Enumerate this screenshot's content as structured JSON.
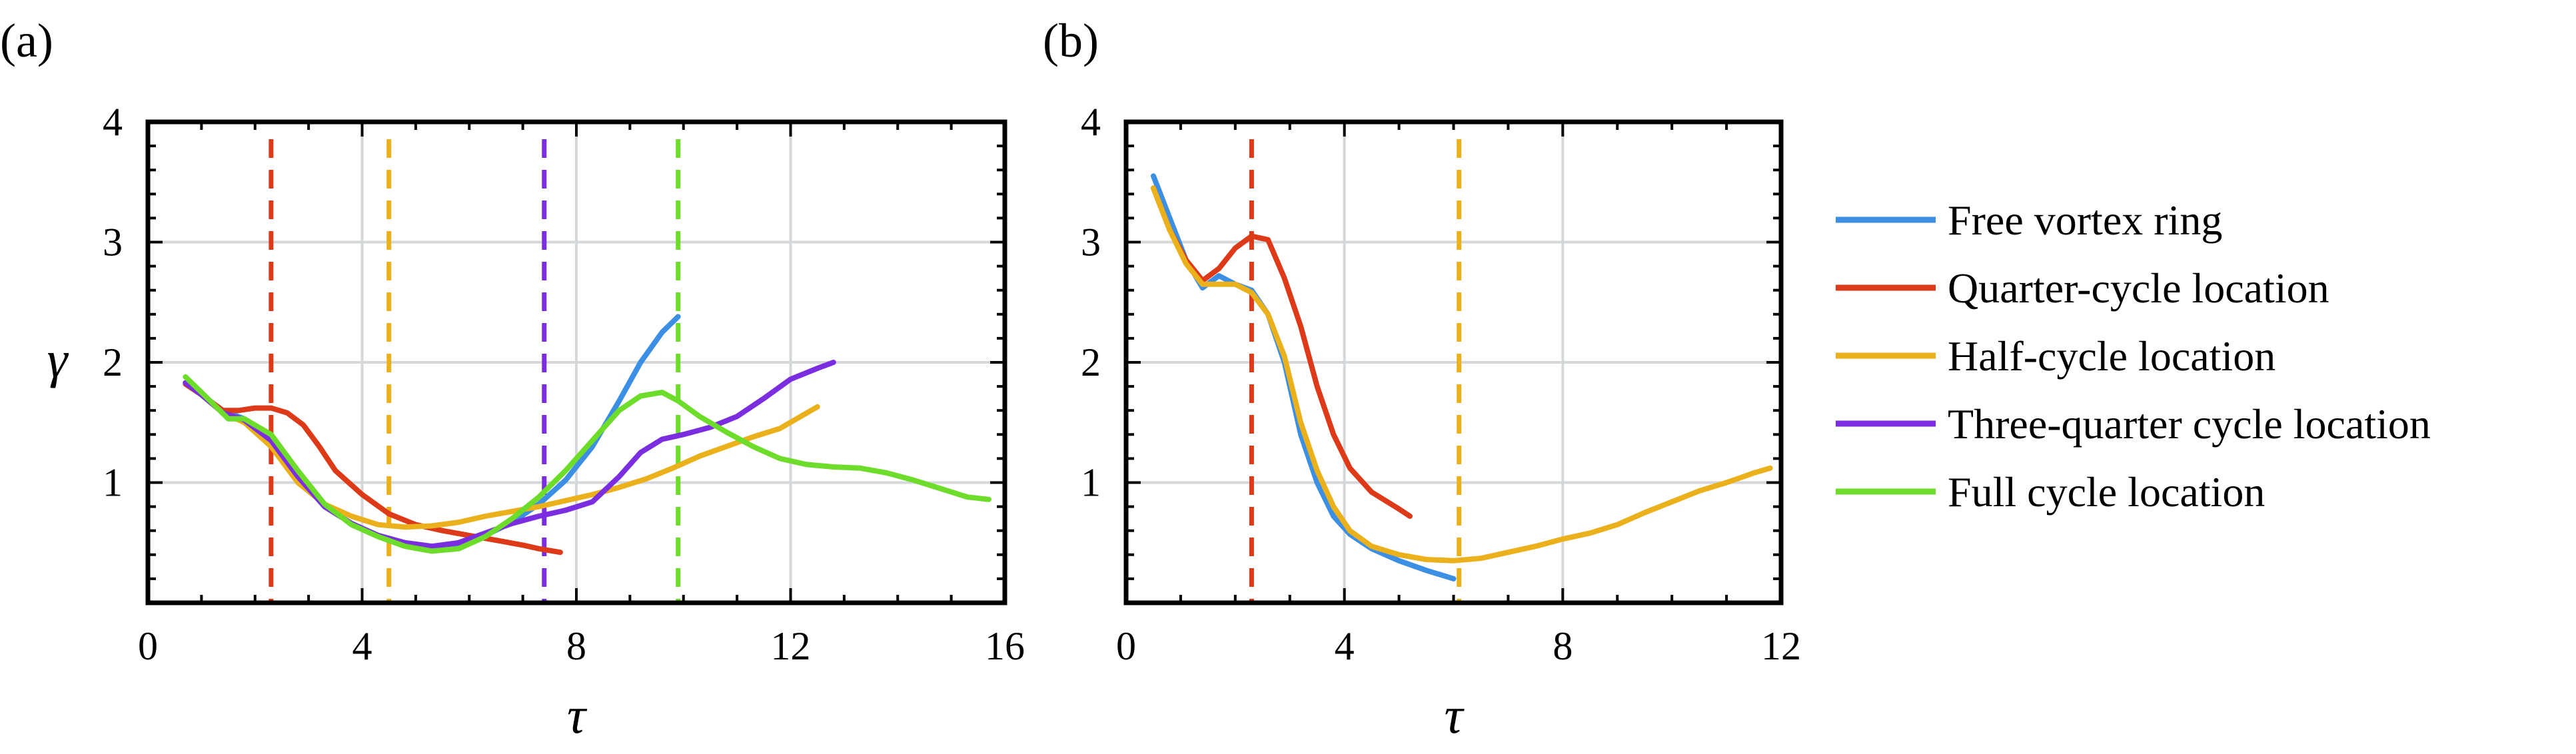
{
  "colors": {
    "free_vortex_ring": "#3d8fe3",
    "quarter_cycle": "#dd3a1a",
    "half_cycle": "#ebb11d",
    "three_quarter_cycle": "#7b2ee0",
    "full_cycle": "#6ddc2a"
  },
  "legend": [
    {
      "label": "Free vortex ring",
      "color_key": "free_vortex_ring"
    },
    {
      "label": "Quarter-cycle location",
      "color_key": "quarter_cycle"
    },
    {
      "label": "Half-cycle location",
      "color_key": "half_cycle"
    },
    {
      "label": "Three-quarter cycle location",
      "color_key": "three_quarter_cycle"
    },
    {
      "label": "Full cycle location",
      "color_key": "full_cycle"
    }
  ],
  "chart_data": [
    {
      "type": "line",
      "panel_label": "(a)",
      "xlabel": "τ",
      "ylabel": "γ",
      "xlim": [
        0,
        16
      ],
      "ylim": [
        0,
        4
      ],
      "xticks": [
        0,
        4,
        8,
        12,
        16
      ],
      "yticks": [
        1,
        2,
        3,
        4
      ],
      "ytick_labels": [
        "1",
        "2",
        "3",
        "4"
      ],
      "xtick_labels": [
        "0",
        "4",
        "8",
        "12",
        "16"
      ],
      "y_zero_label": "0",
      "grid": true,
      "vertical_markers": [
        {
          "x": 2.3,
          "color_key": "quarter_cycle"
        },
        {
          "x": 4.5,
          "color_key": "half_cycle"
        },
        {
          "x": 7.4,
          "color_key": "three_quarter_cycle"
        },
        {
          "x": 9.9,
          "color_key": "full_cycle"
        }
      ],
      "series": [
        {
          "name": "Free vortex ring",
          "color_key": "free_vortex_ring",
          "x": [
            0.7,
            1.0,
            1.4,
            1.8,
            2.3,
            2.8,
            3.3,
            3.8,
            4.3,
            4.8,
            5.3,
            5.8,
            6.3,
            6.8,
            7.3,
            7.8,
            8.3,
            8.8,
            9.2,
            9.6,
            9.9
          ],
          "y": [
            1.83,
            1.73,
            1.6,
            1.53,
            1.35,
            1.05,
            0.8,
            0.66,
            0.56,
            0.5,
            0.47,
            0.48,
            0.56,
            0.67,
            0.82,
            1.02,
            1.3,
            1.68,
            2.0,
            2.25,
            2.38
          ]
        },
        {
          "name": "Quarter-cycle location",
          "color_key": "quarter_cycle",
          "x": [
            0.7,
            1.0,
            1.4,
            1.7,
            2.0,
            2.3,
            2.6,
            2.9,
            3.2,
            3.5,
            4.0,
            4.5,
            5.0,
            5.5,
            6.0,
            6.5,
            7.0,
            7.3,
            7.7
          ],
          "y": [
            1.82,
            1.73,
            1.6,
            1.6,
            1.62,
            1.62,
            1.58,
            1.48,
            1.3,
            1.1,
            0.9,
            0.74,
            0.65,
            0.6,
            0.56,
            0.52,
            0.48,
            0.45,
            0.42
          ]
        },
        {
          "name": "Half-cycle location",
          "color_key": "half_cycle",
          "x": [
            0.7,
            1.0,
            1.4,
            1.8,
            2.3,
            2.8,
            3.3,
            3.8,
            4.3,
            4.8,
            5.3,
            5.8,
            6.3,
            6.8,
            7.3,
            7.8,
            8.3,
            8.8,
            9.3,
            9.8,
            10.3,
            10.8,
            11.3,
            11.8,
            12.5
          ],
          "y": [
            1.83,
            1.73,
            1.58,
            1.5,
            1.3,
            1.0,
            0.82,
            0.72,
            0.65,
            0.63,
            0.64,
            0.67,
            0.72,
            0.76,
            0.8,
            0.85,
            0.9,
            0.96,
            1.03,
            1.12,
            1.22,
            1.3,
            1.38,
            1.45,
            1.63
          ]
        },
        {
          "name": "Three-quarter cycle location",
          "color_key": "three_quarter_cycle",
          "x": [
            0.7,
            1.0,
            1.4,
            1.8,
            2.3,
            2.8,
            3.3,
            3.8,
            4.3,
            4.8,
            5.3,
            5.8,
            6.3,
            6.8,
            7.3,
            7.8,
            8.3,
            8.8,
            9.2,
            9.6,
            10.0,
            10.5,
            11.0,
            11.5,
            12.0,
            12.5,
            12.8
          ],
          "y": [
            1.83,
            1.73,
            1.58,
            1.52,
            1.35,
            1.05,
            0.8,
            0.66,
            0.56,
            0.5,
            0.47,
            0.5,
            0.58,
            0.66,
            0.72,
            0.77,
            0.84,
            1.05,
            1.25,
            1.36,
            1.4,
            1.46,
            1.55,
            1.7,
            1.86,
            1.95,
            2.0
          ]
        },
        {
          "name": "Full cycle location",
          "color_key": "full_cycle",
          "x": [
            0.7,
            1.0,
            1.5,
            1.8,
            2.3,
            2.8,
            3.3,
            3.8,
            4.3,
            4.8,
            5.3,
            5.8,
            6.3,
            6.8,
            7.3,
            7.8,
            8.3,
            8.8,
            9.2,
            9.6,
            9.9,
            10.3,
            10.8,
            11.3,
            11.8,
            12.3,
            12.8,
            13.3,
            13.8,
            14.3,
            14.8,
            15.3,
            15.7
          ],
          "y": [
            1.88,
            1.75,
            1.53,
            1.53,
            1.4,
            1.1,
            0.82,
            0.65,
            0.55,
            0.47,
            0.43,
            0.45,
            0.55,
            0.7,
            0.88,
            1.1,
            1.35,
            1.6,
            1.72,
            1.75,
            1.68,
            1.55,
            1.42,
            1.3,
            1.2,
            1.15,
            1.13,
            1.12,
            1.08,
            1.02,
            0.95,
            0.88,
            0.86
          ]
        }
      ]
    },
    {
      "type": "line",
      "panel_label": "(b)",
      "xlabel": "τ",
      "ylabel": "",
      "xlim": [
        0,
        12
      ],
      "ylim": [
        0,
        4
      ],
      "xticks": [
        0,
        4,
        8,
        12
      ],
      "yticks": [
        1,
        2,
        3,
        4
      ],
      "ytick_labels": [
        "1",
        "2",
        "3",
        "4"
      ],
      "xtick_labels": [
        "0",
        "4",
        "8",
        "12"
      ],
      "y_zero_label": "0",
      "grid": true,
      "vertical_markers": [
        {
          "x": 2.3,
          "color_key": "quarter_cycle"
        },
        {
          "x": 6.1,
          "color_key": "half_cycle"
        }
      ],
      "series": [
        {
          "name": "Free vortex ring",
          "color_key": "free_vortex_ring",
          "x": [
            0.5,
            0.8,
            1.1,
            1.4,
            1.7,
            2.0,
            2.3,
            2.6,
            2.9,
            3.2,
            3.5,
            3.8,
            4.1,
            4.5,
            5.0,
            5.5,
            6.0
          ],
          "y": [
            3.55,
            3.2,
            2.85,
            2.62,
            2.72,
            2.65,
            2.6,
            2.4,
            2.0,
            1.4,
            1.0,
            0.72,
            0.57,
            0.45,
            0.35,
            0.27,
            0.2
          ]
        },
        {
          "name": "Quarter-cycle location",
          "color_key": "quarter_cycle",
          "x": [
            0.5,
            0.8,
            1.1,
            1.4,
            1.7,
            2.0,
            2.3,
            2.6,
            2.9,
            3.2,
            3.5,
            3.8,
            4.1,
            4.5,
            5.0,
            5.2
          ],
          "y": [
            3.45,
            3.1,
            2.85,
            2.68,
            2.78,
            2.95,
            3.05,
            3.02,
            2.7,
            2.3,
            1.8,
            1.4,
            1.12,
            0.92,
            0.78,
            0.72
          ]
        },
        {
          "name": "Half-cycle location",
          "color_key": "half_cycle",
          "x": [
            0.5,
            0.8,
            1.1,
            1.4,
            1.7,
            2.0,
            2.3,
            2.6,
            2.9,
            3.2,
            3.5,
            3.8,
            4.1,
            4.5,
            5.0,
            5.5,
            6.0,
            6.5,
            7.0,
            7.5,
            8.0,
            8.5,
            9.0,
            9.5,
            10.0,
            10.5,
            11.0,
            11.5,
            11.8
          ],
          "y": [
            3.45,
            3.1,
            2.82,
            2.65,
            2.65,
            2.65,
            2.58,
            2.4,
            2.05,
            1.5,
            1.1,
            0.8,
            0.6,
            0.47,
            0.4,
            0.36,
            0.35,
            0.37,
            0.42,
            0.47,
            0.53,
            0.58,
            0.65,
            0.75,
            0.84,
            0.93,
            1.0,
            1.08,
            1.12
          ]
        }
      ]
    }
  ]
}
